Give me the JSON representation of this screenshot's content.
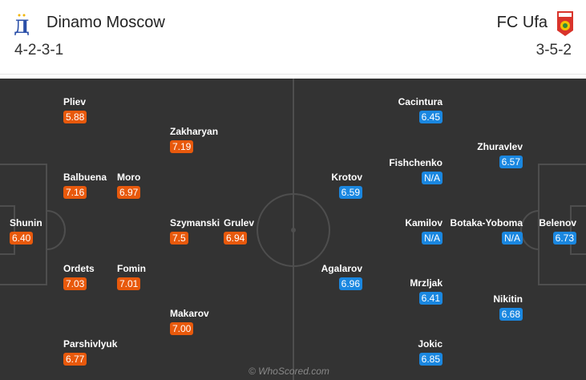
{
  "home": {
    "name": "Dinamo Moscow",
    "formation": "4-2-3-1",
    "logo_icon": "dinamo-crest-icon",
    "color": "#e8590c"
  },
  "away": {
    "name": "FC Ufa",
    "formation": "3-5-2",
    "logo_icon": "ufa-crest-icon",
    "color": "#1a87e0"
  },
  "home_players": [
    {
      "name": "Shunin",
      "rating": "6.40"
    },
    {
      "name": "Pliev",
      "rating": "5.88"
    },
    {
      "name": "Balbuena",
      "rating": "7.16"
    },
    {
      "name": "Ordets",
      "rating": "7.03"
    },
    {
      "name": "Parshivlyuk",
      "rating": "6.77"
    },
    {
      "name": "Moro",
      "rating": "6.97"
    },
    {
      "name": "Fomin",
      "rating": "7.01"
    },
    {
      "name": "Zakharyan",
      "rating": "7.19"
    },
    {
      "name": "Szymanski",
      "rating": "7.5"
    },
    {
      "name": "Makarov",
      "rating": "7.00"
    },
    {
      "name": "Grulev",
      "rating": "6.94"
    }
  ],
  "away_players": [
    {
      "name": "Belenov",
      "rating": "6.73"
    },
    {
      "name": "Zhuravlev",
      "rating": "6.57"
    },
    {
      "name": "Botaka-Yoboma",
      "rating": "N/A"
    },
    {
      "name": "Nikitin",
      "rating": "6.68"
    },
    {
      "name": "Cacintura",
      "rating": "6.45"
    },
    {
      "name": "Fishchenko",
      "rating": "N/A"
    },
    {
      "name": "Kamilov",
      "rating": "N/A"
    },
    {
      "name": "Mrzljak",
      "rating": "6.41"
    },
    {
      "name": "Jokic",
      "rating": "6.85"
    },
    {
      "name": "Krotov",
      "rating": "6.59"
    },
    {
      "name": "Agalarov",
      "rating": "6.96"
    }
  ],
  "watermark": "© WhoScored.com"
}
